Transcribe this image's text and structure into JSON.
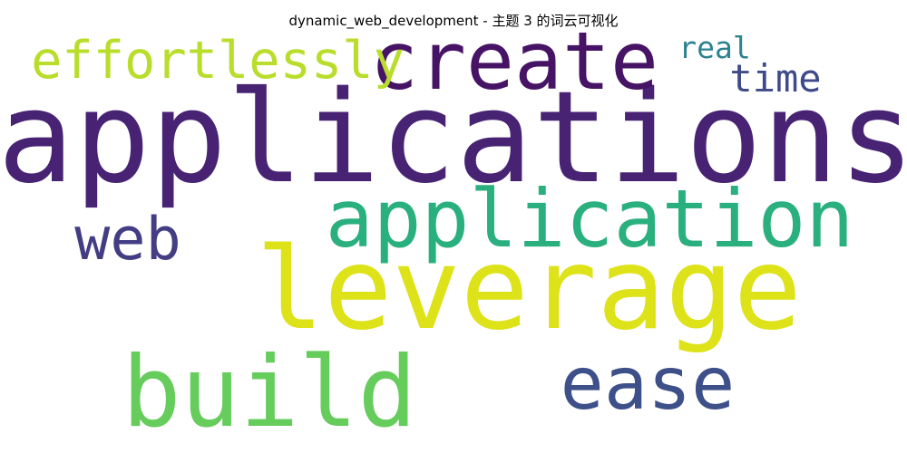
{
  "chart_data": {
    "type": "wordcloud",
    "title": "dynamic_web_development - 主题 3 的词云可视化",
    "words": [
      {
        "text": "applications",
        "color": "#482374"
      },
      {
        "text": "leverage",
        "color": "#dde318"
      },
      {
        "text": "application",
        "color": "#2ab07f"
      },
      {
        "text": "build",
        "color": "#66cc5c"
      },
      {
        "text": "create",
        "color": "#471365"
      },
      {
        "text": "ease",
        "color": "#3e5089"
      },
      {
        "text": "web",
        "color": "#433d84"
      },
      {
        "text": "effortlessly",
        "color": "#b9dd2b"
      },
      {
        "text": "time",
        "color": "#3e4a89"
      },
      {
        "text": "real",
        "color": "#2c838e"
      }
    ]
  }
}
